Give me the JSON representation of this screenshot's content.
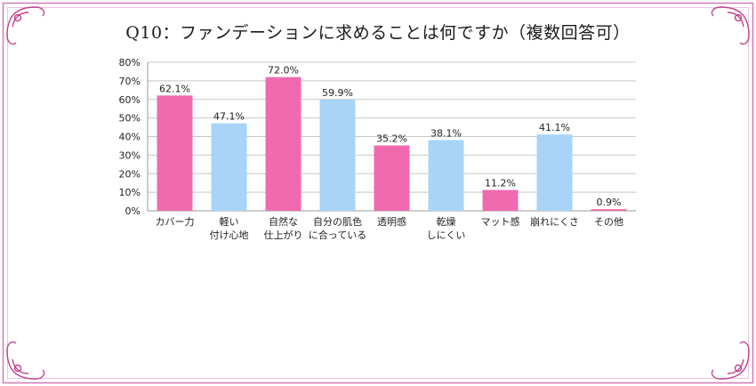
{
  "chart_data": {
    "type": "bar",
    "title": "Q10：ファンデーションに求めることは何ですか（複数回答可）",
    "categories": [
      [
        "カバー力"
      ],
      [
        "軽い",
        "付け心地"
      ],
      [
        "自然な",
        "仕上がり"
      ],
      [
        "自分の肌色",
        "に合っている"
      ],
      [
        "透明感"
      ],
      [
        "乾燥",
        "しにくい"
      ],
      [
        "マット感"
      ],
      [
        "崩れにくさ"
      ],
      [
        "その他"
      ]
    ],
    "values": [
      62.1,
      47.1,
      72.0,
      59.9,
      35.2,
      38.1,
      11.2,
      41.1,
      0.9
    ],
    "value_labels": [
      "62.1%",
      "47.1%",
      "72.0%",
      "59.9%",
      "35.2%",
      "38.1%",
      "11.2%",
      "41.1%",
      "0.9%"
    ],
    "bar_colors": [
      "#f06ab0",
      "#a8d4f8",
      "#f06ab0",
      "#a8d4f8",
      "#f06ab0",
      "#a8d4f8",
      "#f06ab0",
      "#a8d4f8",
      "#f06ab0"
    ],
    "ylim": [
      0,
      80
    ],
    "yticks": [
      0,
      10,
      20,
      30,
      40,
      50,
      60,
      70,
      80
    ],
    "ytick_labels": [
      "0%",
      "10%",
      "20%",
      "30%",
      "40%",
      "50%",
      "60%",
      "70%",
      "80%"
    ],
    "grid": true,
    "xlabel": "",
    "ylabel": ""
  },
  "frame_color": "#c0418f"
}
